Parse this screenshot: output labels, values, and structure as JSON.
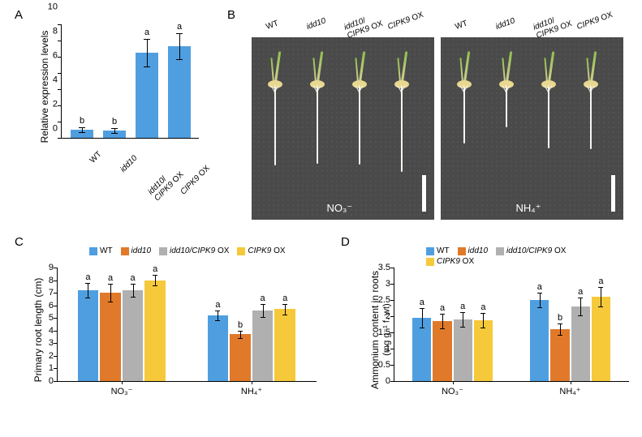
{
  "colors": {
    "wt": "#4f9fe0",
    "idd10": "#e07a2a",
    "idd10_cipk9": "#b0b0b0",
    "cipk9": "#f5c93a"
  },
  "genotypes": [
    "WT",
    "idd10",
    "idd10/CIPK9 OX",
    "CIPK9 OX"
  ],
  "panelA": {
    "label": "A",
    "ylabel": "Relative expression levels",
    "ylim": [
      0,
      14
    ],
    "ytick_step": 2,
    "bars": [
      {
        "x": "WT",
        "value": 1.0,
        "err": 0.3,
        "sig": "b",
        "color": "#4f9fe0"
      },
      {
        "x": "idd10",
        "value": 0.95,
        "err": 0.3,
        "sig": "b",
        "color": "#4f9fe0"
      },
      {
        "x": "idd10/\nCIPK9 OX",
        "value": 10.5,
        "err": 1.7,
        "sig": "a",
        "color": "#4f9fe0"
      },
      {
        "x": "CIPK9 OX",
        "value": 11.3,
        "err": 1.6,
        "sig": "a",
        "color": "#4f9fe0"
      }
    ]
  },
  "panelB": {
    "label": "B",
    "conditions": [
      "NO₃⁻",
      "NH₄⁺"
    ],
    "root_scale": {
      "NO3": {
        "WT": 72,
        "idd10": 70,
        "idd10/CIPK9 OX": 71,
        "CIPK9 OX": 78
      },
      "NH4": {
        "WT": 52,
        "idd10": 37,
        "idd10/CIPK9 OX": 56,
        "CIPK9 OX": 57
      }
    }
  },
  "panelC": {
    "label": "C",
    "ylabel": "Primary root length (cm)",
    "ylim": [
      0,
      9
    ],
    "ytick_step": 1,
    "groups": [
      {
        "group": "NO₃⁻",
        "bars": [
          {
            "value": 7.2,
            "err": 0.6,
            "sig": "a"
          },
          {
            "value": 7.0,
            "err": 0.7,
            "sig": "a"
          },
          {
            "value": 7.2,
            "err": 0.5,
            "sig": "a"
          },
          {
            "value": 8.0,
            "err": 0.4,
            "sig": "a"
          }
        ]
      },
      {
        "group": "NH₄⁺",
        "bars": [
          {
            "value": 5.2,
            "err": 0.4,
            "sig": "a"
          },
          {
            "value": 3.7,
            "err": 0.3,
            "sig": "b"
          },
          {
            "value": 5.6,
            "err": 0.5,
            "sig": "a"
          },
          {
            "value": 5.7,
            "err": 0.4,
            "sig": "a"
          }
        ]
      }
    ]
  },
  "panelD": {
    "label": "D",
    "ylabel": "Ammonium content in roots",
    "ylabel2": "(mg g⁻¹ f. wt)",
    "ylim": [
      0,
      3.5
    ],
    "ytick_step": 0.5,
    "groups": [
      {
        "group": "NO₃⁻",
        "bars": [
          {
            "value": 1.95,
            "err": 0.3,
            "sig": "a"
          },
          {
            "value": 1.85,
            "err": 0.22,
            "sig": "a"
          },
          {
            "value": 1.9,
            "err": 0.22,
            "sig": "a"
          },
          {
            "value": 1.88,
            "err": 0.22,
            "sig": "a"
          }
        ]
      },
      {
        "group": "NH₄⁺",
        "bars": [
          {
            "value": 2.5,
            "err": 0.22,
            "sig": "a"
          },
          {
            "value": 1.6,
            "err": 0.18,
            "sig": "b"
          },
          {
            "value": 2.3,
            "err": 0.28,
            "sig": "a"
          },
          {
            "value": 2.6,
            "err": 0.3,
            "sig": "a"
          }
        ]
      }
    ]
  },
  "legend_labels": [
    "WT",
    "idd10",
    "idd10/CIPK9 OX",
    "CIPK9 OX"
  ]
}
